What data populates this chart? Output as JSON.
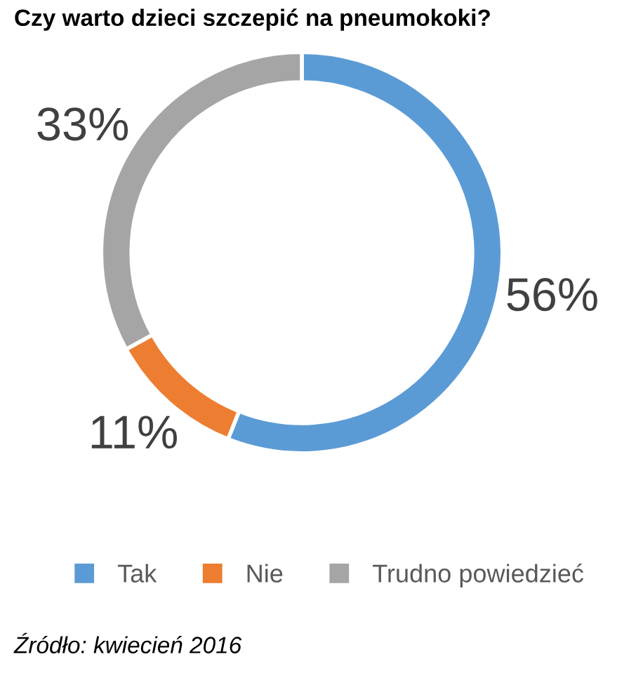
{
  "chart_data": {
    "type": "donut",
    "title": "Czy warto dzieci szczepić na pneumokoki?",
    "categories": [
      "Tak",
      "Nie",
      "Trudno powiedzieć"
    ],
    "values": [
      56,
      11,
      33
    ],
    "colors": [
      "#5b9bd5",
      "#ed7d31",
      "#a5a5a5"
    ],
    "value_labels": [
      "56%",
      "11%",
      "33%"
    ],
    "legend": "bottom",
    "annotations": [
      "Źródło: kwiecień 2016"
    ]
  }
}
